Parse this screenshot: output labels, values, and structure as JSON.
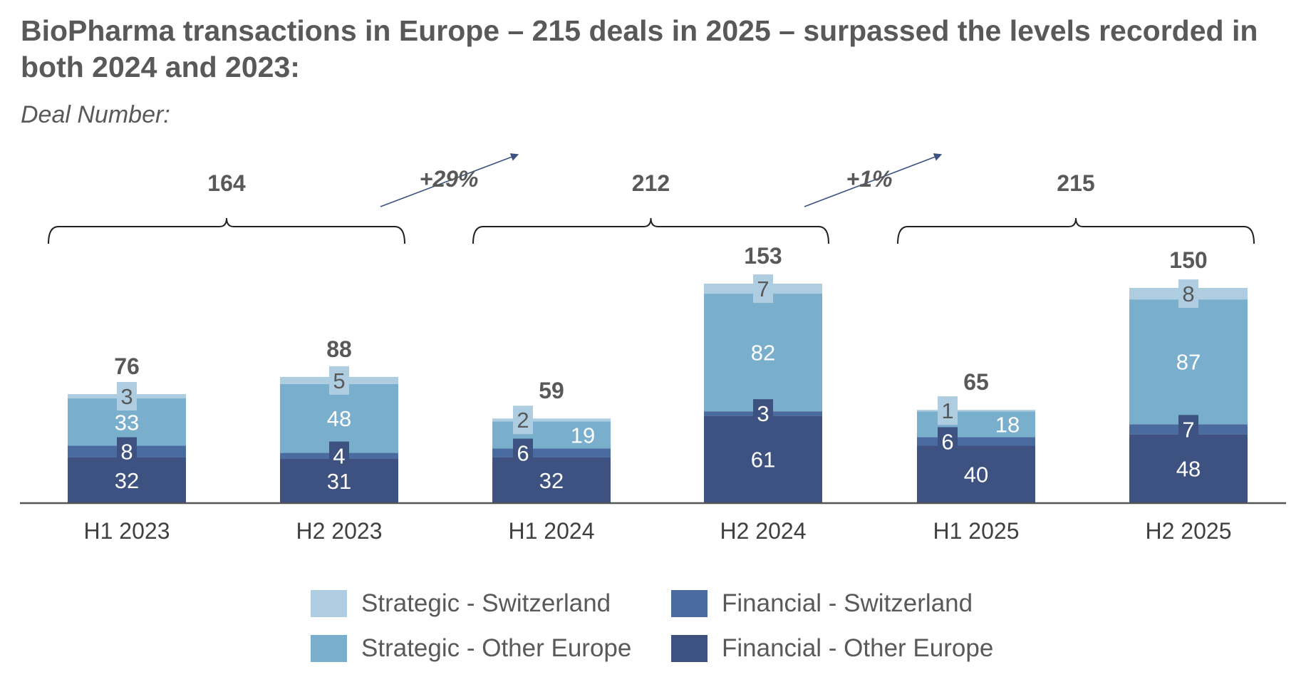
{
  "title": "BioPharma transactions in Europe – 215 deals in 2025 – surpassed the levels recorded in both 2024 and 2023:",
  "subtitle": "Deal Number:",
  "colors": {
    "strategic_switzerland": "#aecde1",
    "strategic_other_europe": "#7aaecd",
    "financial_switzerland": "#4a6b9f",
    "financial_other_europe": "#3d5281",
    "text_dark": "#595959",
    "bracket": "#222222",
    "arrow": "#3d5281"
  },
  "chart_data": {
    "type": "bar",
    "stacked": true,
    "categories": [
      "H1 2023",
      "H2 2023",
      "H1 2024",
      "H2 2024",
      "H1 2025",
      "H2 2025"
    ],
    "series": [
      {
        "name": "Financial - Other Europe",
        "key": "financial_other_europe",
        "values": [
          32,
          31,
          32,
          61,
          40,
          48
        ]
      },
      {
        "name": "Financial - Switzerland",
        "key": "financial_switzerland",
        "values": [
          8,
          4,
          6,
          3,
          6,
          7
        ]
      },
      {
        "name": "Strategic - Other Europe",
        "key": "strategic_other_europe",
        "values": [
          33,
          48,
          19,
          82,
          18,
          87
        ]
      },
      {
        "name": "Strategic - Switzerland",
        "key": "strategic_switzerland",
        "values": [
          3,
          5,
          2,
          7,
          1,
          8
        ]
      }
    ],
    "totals": [
      76,
      88,
      59,
      153,
      65,
      150
    ],
    "ylim": [
      0,
      153
    ],
    "year_groups": [
      {
        "year": "2023",
        "total": 164,
        "categories": [
          "H1 2023",
          "H2 2023"
        ]
      },
      {
        "year": "2024",
        "total": 212,
        "categories": [
          "H1 2024",
          "H2 2024"
        ]
      },
      {
        "year": "2025",
        "total": 215,
        "categories": [
          "H1 2025",
          "H2 2025"
        ]
      }
    ],
    "growth_annotations": [
      {
        "from": "2023",
        "to": "2024",
        "label": "+29%"
      },
      {
        "from": "2024",
        "to": "2025",
        "label": "+1%"
      }
    ],
    "legend": {
      "position": "bottom",
      "order": [
        "Strategic - Switzerland",
        "Financial - Switzerland",
        "Strategic - Other Europe",
        "Financial - Other Europe"
      ]
    }
  }
}
